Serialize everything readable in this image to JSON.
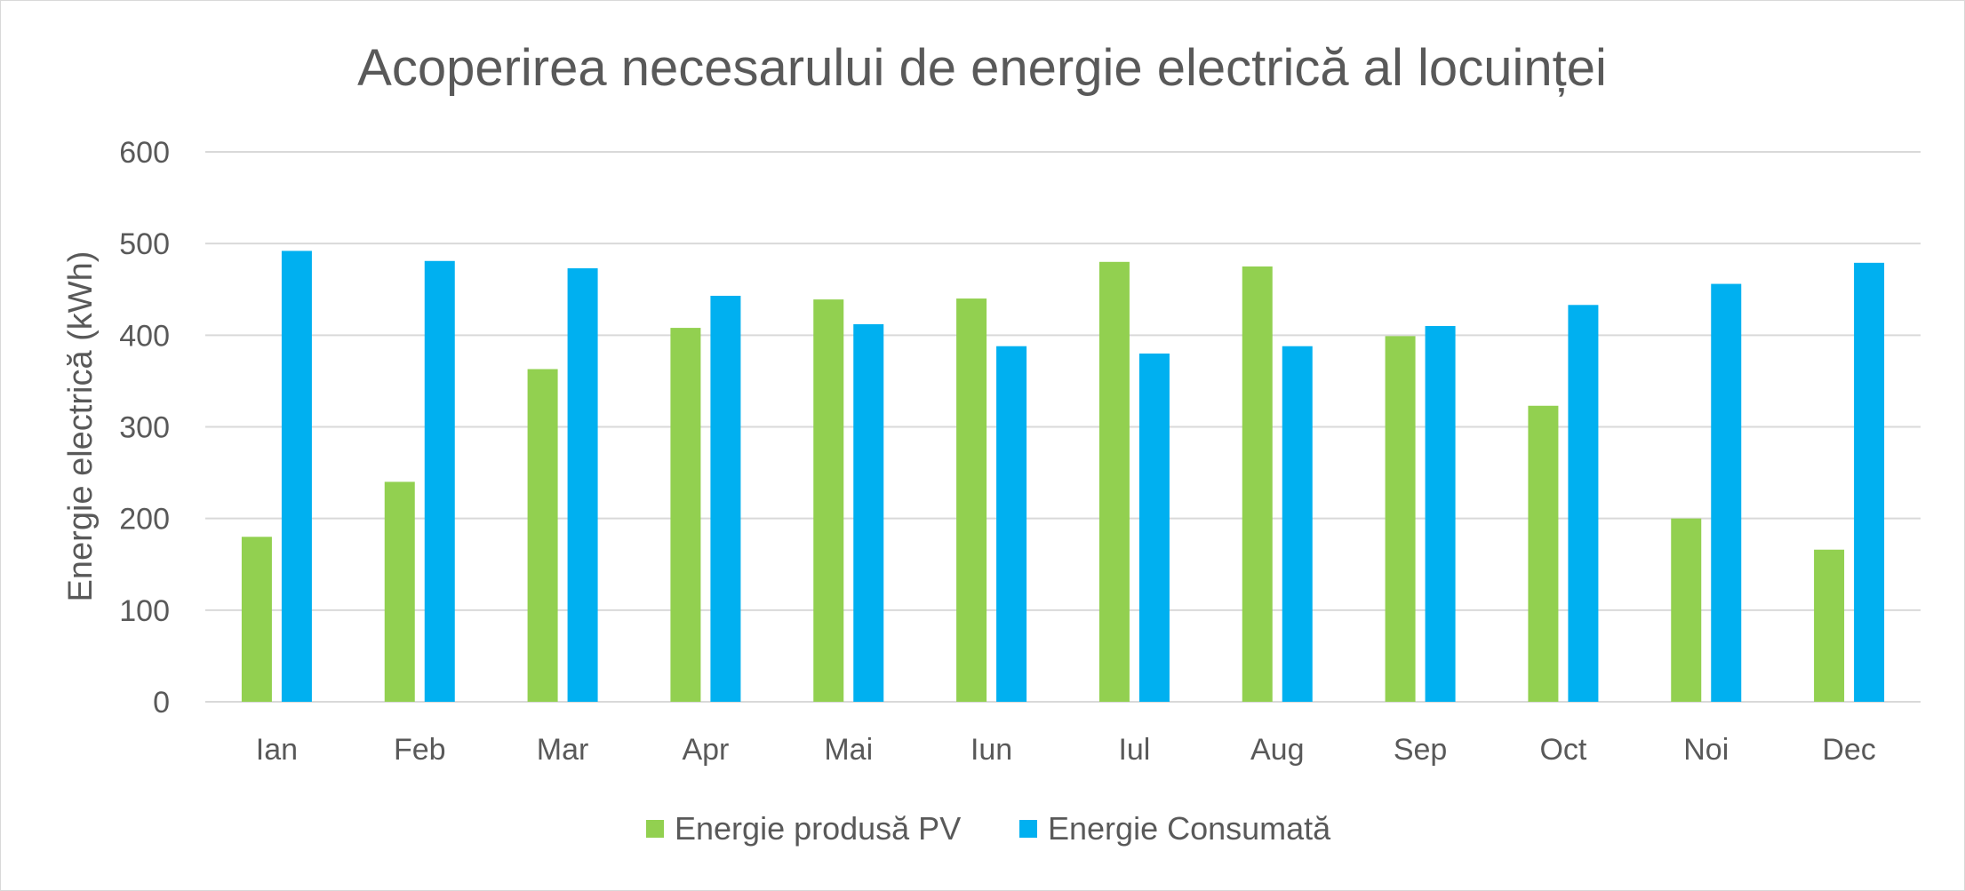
{
  "chart_data": {
    "type": "bar",
    "title": "Acoperirea necesarului de energie electrică al locuinței",
    "xlabel": "",
    "ylabel": "Energie electrică (kWh)",
    "ylim": [
      0,
      600
    ],
    "yticks": [
      0,
      100,
      200,
      300,
      400,
      500,
      600
    ],
    "grid": true,
    "legend_position": "bottom",
    "categories": [
      "Ian",
      "Feb",
      "Mar",
      "Apr",
      "Mai",
      "Iun",
      "Iul",
      "Aug",
      "Sep",
      "Oct",
      "Noi",
      "Dec"
    ],
    "series": [
      {
        "name": "Energie produsă PV",
        "color": "#92d050",
        "values": [
          180,
          240,
          363,
          408,
          439,
          440,
          480,
          475,
          399,
          323,
          200,
          166
        ]
      },
      {
        "name": "Energie Consumată",
        "color": "#00b0f0",
        "values": [
          492,
          481,
          473,
          443,
          412,
          388,
          380,
          388,
          410,
          433,
          456,
          479
        ]
      }
    ]
  }
}
